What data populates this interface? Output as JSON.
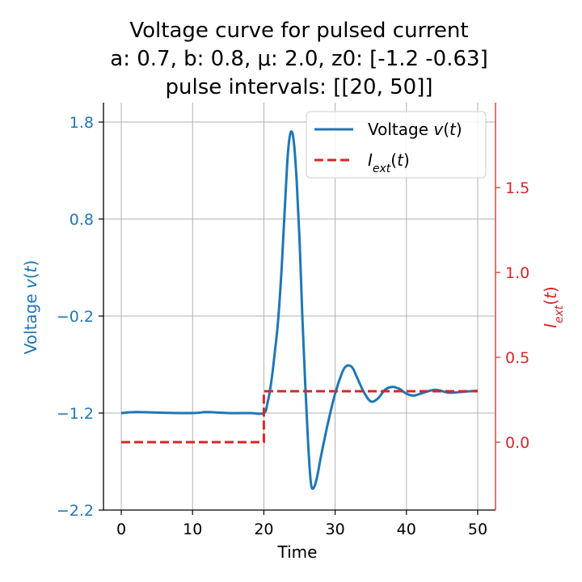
{
  "chart_data": {
    "type": "line",
    "title_lines": [
      "Voltage curve for pulsed current",
      "a: 0.7, b: 0.8, μ: 2.0, z0: [-1.2  -0.63]",
      "pulse intervals: [[20, 50]]"
    ],
    "xlabel": "Time",
    "ylabel_left": "Voltage v(t)",
    "ylabel_right": "I_ext(t)",
    "xlim": [
      -2.5,
      52.5
    ],
    "ylim_left": [
      -2.2,
      2.0
    ],
    "ylim_right": [
      -0.4,
      2.0
    ],
    "x_ticks": [
      0,
      10,
      20,
      30,
      40,
      50
    ],
    "x_tick_labels": [
      "0",
      "10",
      "20",
      "30",
      "40",
      "50"
    ],
    "y_left_ticks": [
      1.8,
      0.8,
      -0.2,
      -1.2,
      -2.2
    ],
    "y_left_tick_labels": [
      "1.8",
      "0.8",
      "−0.2",
      "−1.2",
      "−2.2"
    ],
    "y_right_ticks": [
      0.0,
      0.5,
      1.0,
      1.5
    ],
    "y_right_tick_labels": [
      "0.0",
      "0.5",
      "1.0",
      "1.5"
    ],
    "grid": true,
    "legend_position": "top-right",
    "colors": {
      "voltage": "#1f77b4",
      "current": "#d62728",
      "grid": "#b0b0b0"
    },
    "series": [
      {
        "name": "Voltage v(t)",
        "axis": "left",
        "style": "solid",
        "x": [
          0,
          2,
          5,
          10,
          12,
          15,
          18,
          20,
          20.5,
          21,
          21.5,
          22,
          22.5,
          23,
          23.4,
          23.8,
          24.2,
          24.6,
          25,
          25.4,
          25.8,
          26.2,
          26.6,
          27,
          27.5,
          28,
          29,
          30,
          31,
          31.5,
          32,
          32.5,
          33,
          34,
          35,
          36,
          37,
          38,
          39,
          40,
          41,
          42,
          44,
          46,
          48,
          50
        ],
        "values": [
          -1.2,
          -1.19,
          -1.195,
          -1.2,
          -1.19,
          -1.2,
          -1.2,
          -1.2,
          -1.1,
          -0.9,
          -0.6,
          -0.25,
          0.3,
          1.0,
          1.5,
          1.7,
          1.6,
          1.2,
          0.6,
          -0.2,
          -0.9,
          -1.5,
          -1.92,
          -1.97,
          -1.85,
          -1.65,
          -1.3,
          -1.0,
          -0.78,
          -0.72,
          -0.71,
          -0.74,
          -0.82,
          -0.98,
          -1.08,
          -1.05,
          -0.96,
          -0.93,
          -0.95,
          -1.0,
          -1.02,
          -1.0,
          -0.96,
          -0.99,
          -0.98,
          -0.97
        ]
      },
      {
        "name": "I_ext(t)",
        "axis": "right",
        "style": "dashed",
        "x": [
          0,
          20,
          20,
          50
        ],
        "values": [
          0.0,
          0.0,
          0.3,
          0.3
        ]
      }
    ]
  }
}
